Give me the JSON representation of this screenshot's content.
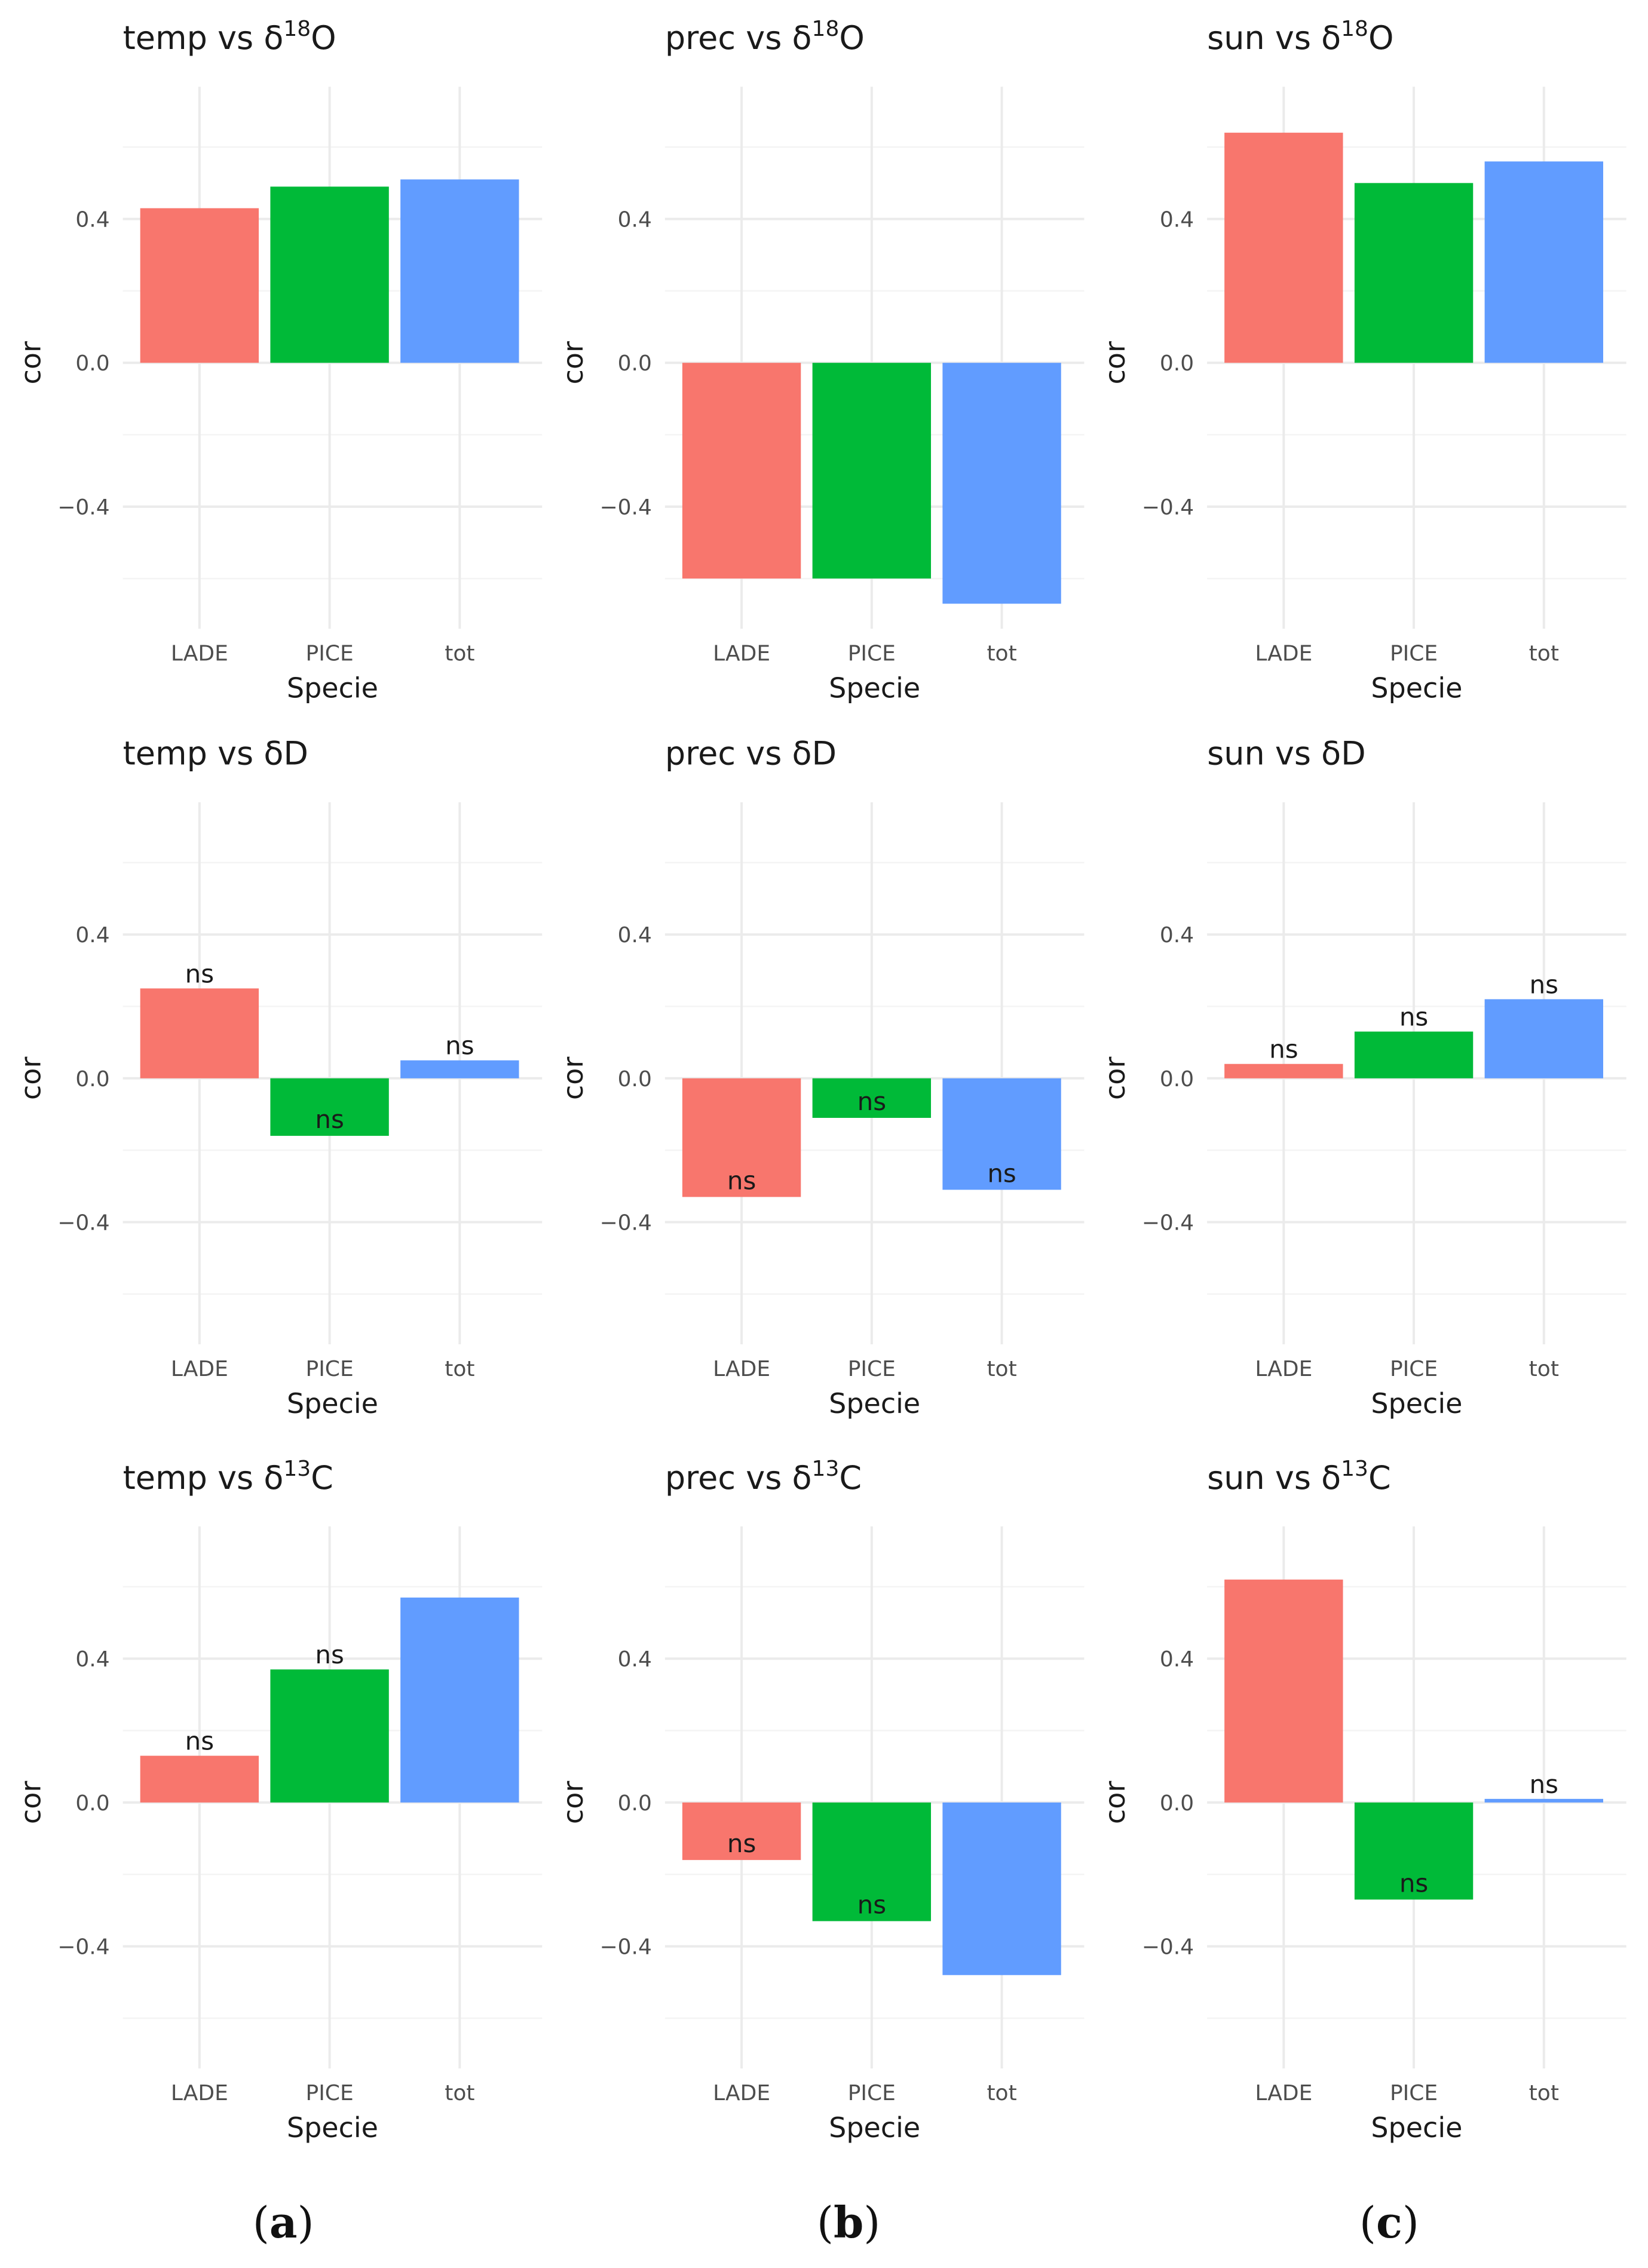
{
  "figure": {
    "panel_labels": [
      {
        "open": "(",
        "letter": "a",
        "close": ")"
      },
      {
        "open": "(",
        "letter": "b",
        "close": ")"
      },
      {
        "open": "(",
        "letter": "c",
        "close": ")"
      }
    ]
  },
  "colors": {
    "LADE": "#F8766D",
    "PICE": "#00BA38",
    "tot": "#619CFF"
  },
  "chart_data": [
    {
      "type": "bar",
      "title": {
        "variable": "temp",
        "vs": "vs",
        "isotope": "δ",
        "sup": "18",
        "element": "O"
      },
      "xlabel": "Specie",
      "ylabel": "cor",
      "categories": [
        "LADE",
        "PICE",
        "tot"
      ],
      "values": [
        0.43,
        0.49,
        0.51
      ],
      "labels": [
        "",
        "",
        ""
      ],
      "ylim": [
        -0.6,
        0.76
      ],
      "yticks": [
        -0.4,
        0.0,
        0.4
      ],
      "ytick_labels": [
        "−0.4",
        "0.0",
        "0.4"
      ],
      "grid": true
    },
    {
      "type": "bar",
      "title": {
        "variable": "prec",
        "vs": "vs",
        "isotope": "δ",
        "sup": "18",
        "element": "O"
      },
      "xlabel": "Specie",
      "ylabel": "cor",
      "categories": [
        "LADE",
        "PICE",
        "tot"
      ],
      "values": [
        -0.6,
        -0.6,
        -0.67
      ],
      "labels": [
        "",
        "",
        ""
      ],
      "ylim": [
        -0.6,
        0.76
      ],
      "yticks": [
        -0.4,
        0.0,
        0.4
      ],
      "ytick_labels": [
        "−0.4",
        "0.0",
        "0.4"
      ],
      "grid": true
    },
    {
      "type": "bar",
      "title": {
        "variable": "sun",
        "vs": "vs",
        "isotope": "δ",
        "sup": "18",
        "element": "O"
      },
      "xlabel": "Specie",
      "ylabel": "cor",
      "categories": [
        "LADE",
        "PICE",
        "tot"
      ],
      "values": [
        0.64,
        0.5,
        0.56
      ],
      "labels": [
        "",
        "",
        ""
      ],
      "ylim": [
        -0.6,
        0.76
      ],
      "yticks": [
        -0.4,
        0.0,
        0.4
      ],
      "ytick_labels": [
        "−0.4",
        "0.0",
        "0.4"
      ],
      "grid": true
    },
    {
      "type": "bar",
      "title": {
        "variable": "temp",
        "vs": "vs",
        "isotope": "δ",
        "sup": "",
        "element": "D"
      },
      "xlabel": "Specie",
      "ylabel": "cor",
      "categories": [
        "LADE",
        "PICE",
        "tot"
      ],
      "values": [
        0.25,
        -0.16,
        0.05
      ],
      "labels": [
        "ns",
        "ns",
        "ns"
      ],
      "ylim": [
        -0.6,
        0.76
      ],
      "yticks": [
        -0.4,
        0.0,
        0.4
      ],
      "ytick_labels": [
        "−0.4",
        "0.0",
        "0.4"
      ],
      "grid": true
    },
    {
      "type": "bar",
      "title": {
        "variable": "prec",
        "vs": "vs",
        "isotope": "δ",
        "sup": "",
        "element": "D"
      },
      "xlabel": "Specie",
      "ylabel": "cor",
      "categories": [
        "LADE",
        "PICE",
        "tot"
      ],
      "values": [
        -0.33,
        -0.11,
        -0.31
      ],
      "labels": [
        "ns",
        "ns",
        "ns"
      ],
      "ylim": [
        -0.6,
        0.76
      ],
      "yticks": [
        -0.4,
        0.0,
        0.4
      ],
      "ytick_labels": [
        "−0.4",
        "0.0",
        "0.4"
      ],
      "grid": true
    },
    {
      "type": "bar",
      "title": {
        "variable": "sun",
        "vs": "vs",
        "isotope": "δ",
        "sup": "",
        "element": "D"
      },
      "xlabel": "Specie",
      "ylabel": "cor",
      "categories": [
        "LADE",
        "PICE",
        "tot"
      ],
      "values": [
        0.04,
        0.13,
        0.22
      ],
      "labels": [
        "ns",
        "ns",
        "ns"
      ],
      "ylim": [
        -0.6,
        0.76
      ],
      "yticks": [
        -0.4,
        0.0,
        0.4
      ],
      "ytick_labels": [
        "−0.4",
        "0.0",
        "0.4"
      ],
      "grid": true
    },
    {
      "type": "bar",
      "title": {
        "variable": "temp",
        "vs": "vs",
        "isotope": "δ",
        "sup": "13",
        "element": "C"
      },
      "xlabel": "Specie",
      "ylabel": "cor",
      "categories": [
        "LADE",
        "PICE",
        "tot"
      ],
      "values": [
        0.13,
        0.37,
        0.57
      ],
      "labels": [
        "ns",
        "ns",
        ""
      ],
      "ylim": [
        -0.6,
        0.76
      ],
      "yticks": [
        -0.4,
        0.0,
        0.4
      ],
      "ytick_labels": [
        "−0.4",
        "0.0",
        "0.4"
      ],
      "grid": true
    },
    {
      "type": "bar",
      "title": {
        "variable": "prec",
        "vs": "vs",
        "isotope": "δ",
        "sup": "13",
        "element": "C"
      },
      "xlabel": "Specie",
      "ylabel": "cor",
      "categories": [
        "LADE",
        "PICE",
        "tot"
      ],
      "values": [
        -0.16,
        -0.33,
        -0.48
      ],
      "labels": [
        "ns",
        "ns",
        ""
      ],
      "ylim": [
        -0.6,
        0.76
      ],
      "yticks": [
        -0.4,
        0.0,
        0.4
      ],
      "ytick_labels": [
        "−0.4",
        "0.0",
        "0.4"
      ],
      "grid": true
    },
    {
      "type": "bar",
      "title": {
        "variable": "sun",
        "vs": "vs",
        "isotope": "δ",
        "sup": "13",
        "element": "C"
      },
      "xlabel": "Specie",
      "ylabel": "cor",
      "categories": [
        "LADE",
        "PICE",
        "tot"
      ],
      "values": [
        0.62,
        -0.27,
        0.01
      ],
      "labels": [
        "",
        "ns",
        "ns"
      ],
      "ylim": [
        -0.6,
        0.76
      ],
      "yticks": [
        -0.4,
        0.0,
        0.4
      ],
      "ytick_labels": [
        "−0.4",
        "0.0",
        "0.4"
      ],
      "grid": true
    }
  ]
}
